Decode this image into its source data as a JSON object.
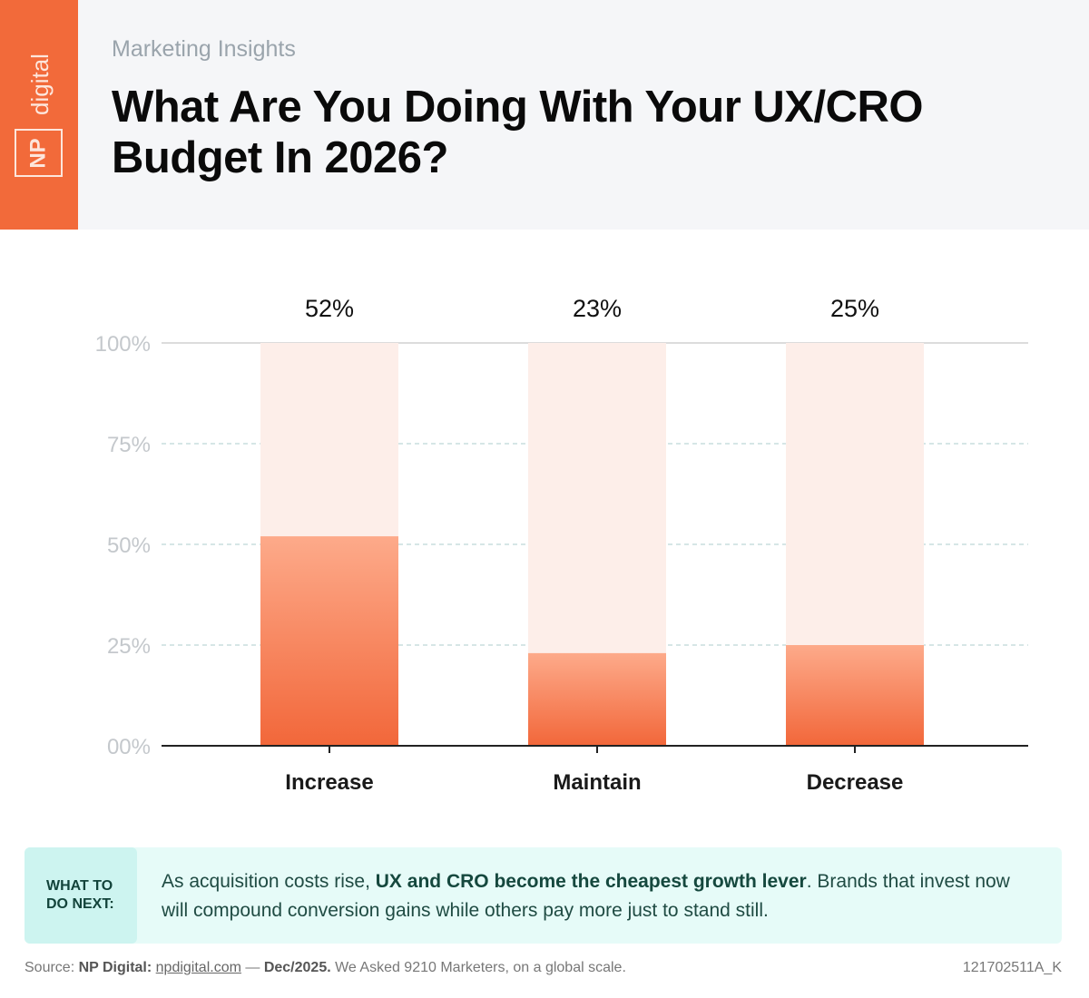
{
  "header": {
    "subtitle": "Marketing Insights",
    "title": "What Are You Doing With Your UX/CRO Budget In 2026?",
    "logo_text": "NP digital"
  },
  "colors": {
    "brand": "#f26a3a",
    "bar_top": "#fdaa8a",
    "bar_bottom": "#f2673a",
    "bar_background": "#fdeee9",
    "callout_bg": "#e6fbf8"
  },
  "chart_data": {
    "type": "bar",
    "categories": [
      "Increase",
      "Maintain",
      "Decrease"
    ],
    "values": [
      52,
      23,
      25
    ],
    "data_labels": [
      "52%",
      "23%",
      "25%"
    ],
    "yticks": [
      "00%",
      "25%",
      "50%",
      "75%",
      "100%"
    ],
    "ylim": [
      0,
      100
    ],
    "grid": true
  },
  "callout": {
    "tag_line1": "WHAT TO",
    "tag_line2": "DO NEXT:",
    "text_before": "As acquisition costs rise, ",
    "text_bold": "UX and CRO become the cheapest growth lever",
    "text_after": ". Brands that invest now will compound conversion gains while others pay more just to stand still."
  },
  "footer": {
    "source_label": "Source: ",
    "source_name": "NP Digital:",
    "source_link": "npdigital.com",
    "dash": " — ",
    "date": "Dec/2025.",
    "note": " We Asked 9210 Marketers, on a global scale.",
    "code": "121702511A_K"
  }
}
